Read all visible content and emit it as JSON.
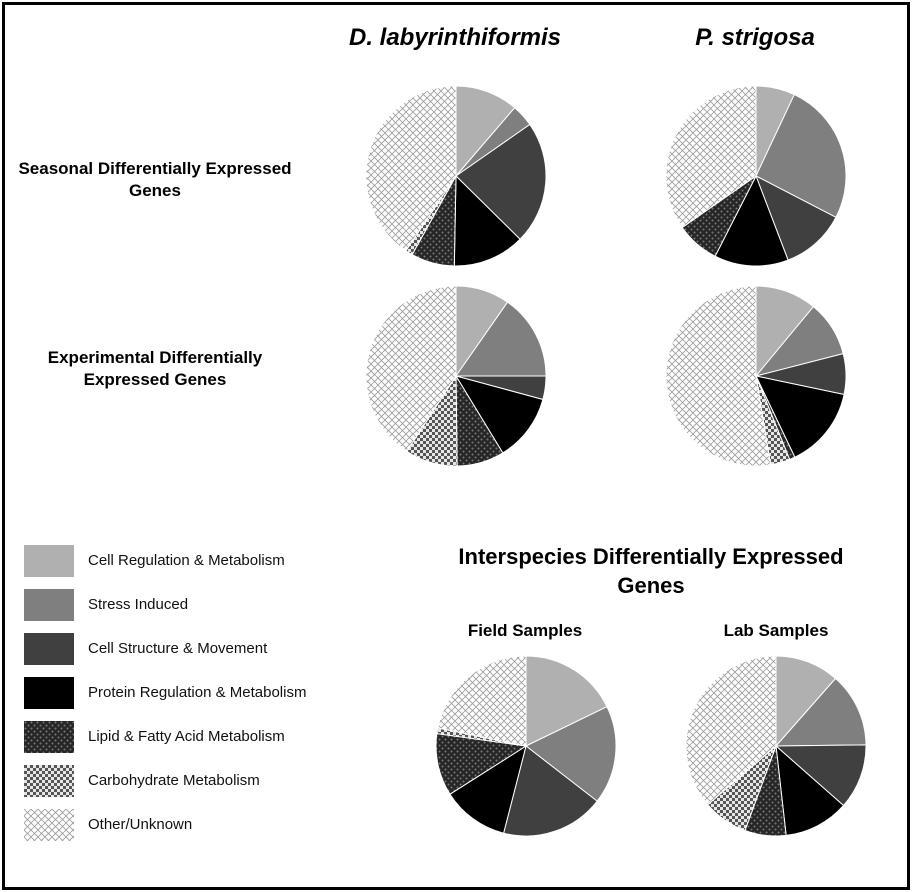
{
  "species": [
    "D. labyrinthiformis",
    "P. strigosa"
  ],
  "rows": [
    "Seasonal Differentially Expressed Genes",
    "Experimental Differentially Expressed Genes"
  ],
  "interspecies": {
    "title": "Interspecies Differentially Expressed Genes",
    "field_label": "Field Samples",
    "lab_label": "Lab Samples"
  },
  "legend": [
    {
      "label": "Cell Regulation & Metabolism",
      "fill": "#b0b0b0",
      "pattern": "solid"
    },
    {
      "label": "Stress Induced",
      "fill": "#7f7f7f",
      "pattern": "solid"
    },
    {
      "label": "Cell Structure & Movement",
      "fill": "#404040",
      "pattern": "solid"
    },
    {
      "label": "Protein Regulation & Metabolism",
      "fill": "#000000",
      "pattern": "solid"
    },
    {
      "label": "Lipid & Fatty Acid Metabolism",
      "fill": "#262626",
      "pattern": "dark-dots"
    },
    {
      "label": "Carbohydrate Metabolism",
      "fill": "#e8e8e8",
      "pattern": "checker"
    },
    {
      "label": "Other/Unknown",
      "fill": "#ffffff",
      "pattern": "crosshatch"
    }
  ],
  "chart_data": [
    {
      "type": "pie",
      "title": "Seasonal Differentially Expressed Genes — D. labyrinthiformis",
      "labels": [
        "Cell Regulation & Metabolism",
        "Stress Induced",
        "Cell Structure & Movement",
        "Protein Regulation & Metabolism",
        "Lipid & Fatty Acid Metabolism",
        "Carbohydrate Metabolism",
        "Other/Unknown"
      ],
      "values": [
        11.3,
        4.0,
        22.1,
        12.9,
        7.8,
        1.3,
        40.6
      ]
    },
    {
      "type": "pie",
      "title": "Seasonal Differentially Expressed Genes — P. strigosa",
      "labels": [
        "Cell Regulation & Metabolism",
        "Stress Induced",
        "Cell Structure & Movement",
        "Protein Regulation & Metabolism",
        "Lipid & Fatty Acid Metabolism",
        "Carbohydrate Metabolism",
        "Other/Unknown"
      ],
      "values": [
        7.0,
        25.6,
        11.6,
        13.3,
        7.8,
        0,
        34.7
      ]
    },
    {
      "type": "pie",
      "title": "Experimental Differentially Expressed Genes — D. labyrinthiformis",
      "labels": [
        "Cell Regulation & Metabolism",
        "Stress Induced",
        "Cell Structure & Movement",
        "Protein Regulation & Metabolism",
        "Lipid & Fatty Acid Metabolism",
        "Carbohydrate Metabolism",
        "Other/Unknown"
      ],
      "values": [
        9.7,
        15.3,
        4.2,
        12.1,
        8.5,
        9.4,
        40.8
      ]
    },
    {
      "type": "pie",
      "title": "Experimental Differentially Expressed Genes — P. strigosa",
      "labels": [
        "Cell Regulation & Metabolism",
        "Stress Induced",
        "Cell Structure & Movement",
        "Protein Regulation & Metabolism",
        "Lipid & Fatty Acid Metabolism",
        "Carbohydrate Metabolism",
        "Other/Unknown"
      ],
      "values": [
        11.0,
        10.0,
        7.3,
        14.6,
        1.0,
        3.5,
        52.6
      ]
    },
    {
      "type": "pie",
      "title": "Interspecies Differentially Expressed Genes — Field Samples",
      "labels": [
        "Cell Regulation & Metabolism",
        "Stress Induced",
        "Cell Structure & Movement",
        "Protein Regulation & Metabolism",
        "Lipid & Fatty Acid Metabolism",
        "Carbohydrate Metabolism",
        "Other/Unknown"
      ],
      "values": [
        17.8,
        17.7,
        18.5,
        12.0,
        11.2,
        1.0,
        21.8
      ]
    },
    {
      "type": "pie",
      "title": "Interspecies Differentially Expressed Genes — Lab Samples",
      "labels": [
        "Cell Regulation & Metabolism",
        "Stress Induced",
        "Cell Structure & Movement",
        "Protein Regulation & Metabolism",
        "Lipid & Fatty Acid Metabolism",
        "Carbohydrate Metabolism",
        "Other/Unknown"
      ],
      "values": [
        11.5,
        13.3,
        11.7,
        11.7,
        7.4,
        8.1,
        36.3
      ]
    }
  ]
}
